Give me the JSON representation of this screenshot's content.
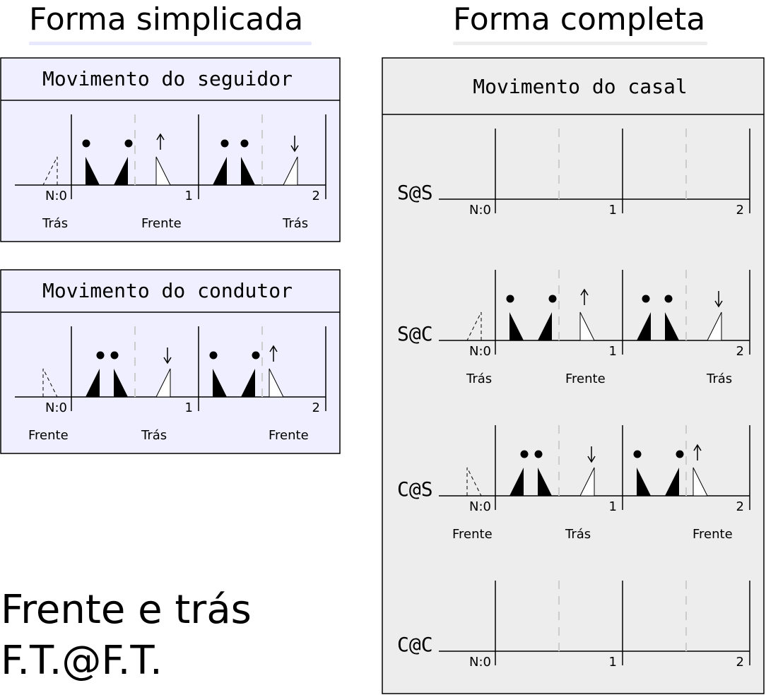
{
  "left_heading": "Forma simplicada",
  "right_heading": "Forma completa",
  "follower_panel_title": "Movimento do seguidor",
  "leader_panel_title": "Movimento do condutor",
  "couple_panel_title": "Movimento do casal",
  "beat_labels": [
    "N:0",
    "1",
    "2"
  ],
  "row_labels": [
    "S@S",
    "S@C",
    "C@S",
    "C@C"
  ],
  "follower_directions": [
    "Trás",
    "Frente",
    "Trás"
  ],
  "leader_directions": [
    "Frente",
    "Trás",
    "Frente"
  ],
  "footer_line1": "Frente e trás",
  "footer_line2": "F.T.@F.T.",
  "colors": {
    "follower_panel_bg": "#efefff",
    "follower_underline": "#e8e8ff",
    "couple_panel_bg": "#ededed",
    "couple_underline": "#ededed",
    "dashed_guide": "#cccccc",
    "ink": "#000000"
  }
}
